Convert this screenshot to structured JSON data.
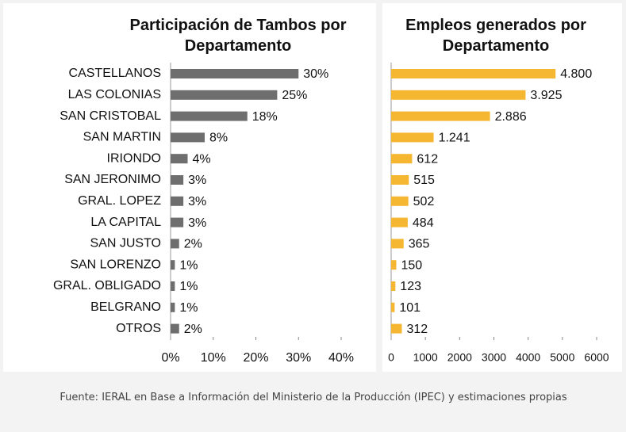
{
  "chart_data": [
    {
      "type": "bar",
      "orientation": "horizontal",
      "title": "Participación de Tambos por Departamento",
      "categories": [
        "CASTELLANOS",
        "LAS COLONIAS",
        "SAN CRISTOBAL",
        "SAN MARTIN",
        "IRIONDO",
        "SAN JERONIMO",
        "GRAL. LOPEZ",
        "LA CAPITAL",
        "SAN JUSTO",
        "SAN LORENZO",
        "GRAL. OBLIGADO",
        "BELGRANO",
        "OTROS"
      ],
      "values": [
        30,
        25,
        18,
        8,
        4,
        3,
        3,
        3,
        2,
        1,
        1,
        1,
        2
      ],
      "value_labels": [
        "30%",
        "25%",
        "18%",
        "8%",
        "4%",
        "3%",
        "3%",
        "3%",
        "2%",
        "1%",
        "1%",
        "1%",
        "2%"
      ],
      "color": "#6e6e6e",
      "xlim": [
        0,
        40
      ],
      "xticks": [
        {
          "value": 0,
          "label": "0%"
        },
        {
          "value": 10,
          "label": "10%"
        },
        {
          "value": 20,
          "label": "20%"
        },
        {
          "value": 30,
          "label": "30%"
        },
        {
          "value": 40,
          "label": "40%"
        }
      ]
    },
    {
      "type": "bar",
      "orientation": "horizontal",
      "title": "Empleos generados por Departamento",
      "values": [
        4800,
        3925,
        2886,
        1241,
        612,
        515,
        502,
        484,
        365,
        150,
        123,
        101,
        312
      ],
      "value_labels": [
        "4.800",
        "3.925",
        "2.886",
        "1.241",
        "612",
        "515",
        "502",
        "484",
        "365",
        "150",
        "123",
        "101",
        "312"
      ],
      "color": "#f5b731",
      "xlim": [
        0,
        6000
      ],
      "xticks": [
        0,
        1000,
        2000,
        3000,
        4000,
        5000,
        6000
      ]
    }
  ],
  "footnote": "Fuente: IERAL en Base a Información del Ministerio de la Producción (IPEC) y estimaciones propias"
}
